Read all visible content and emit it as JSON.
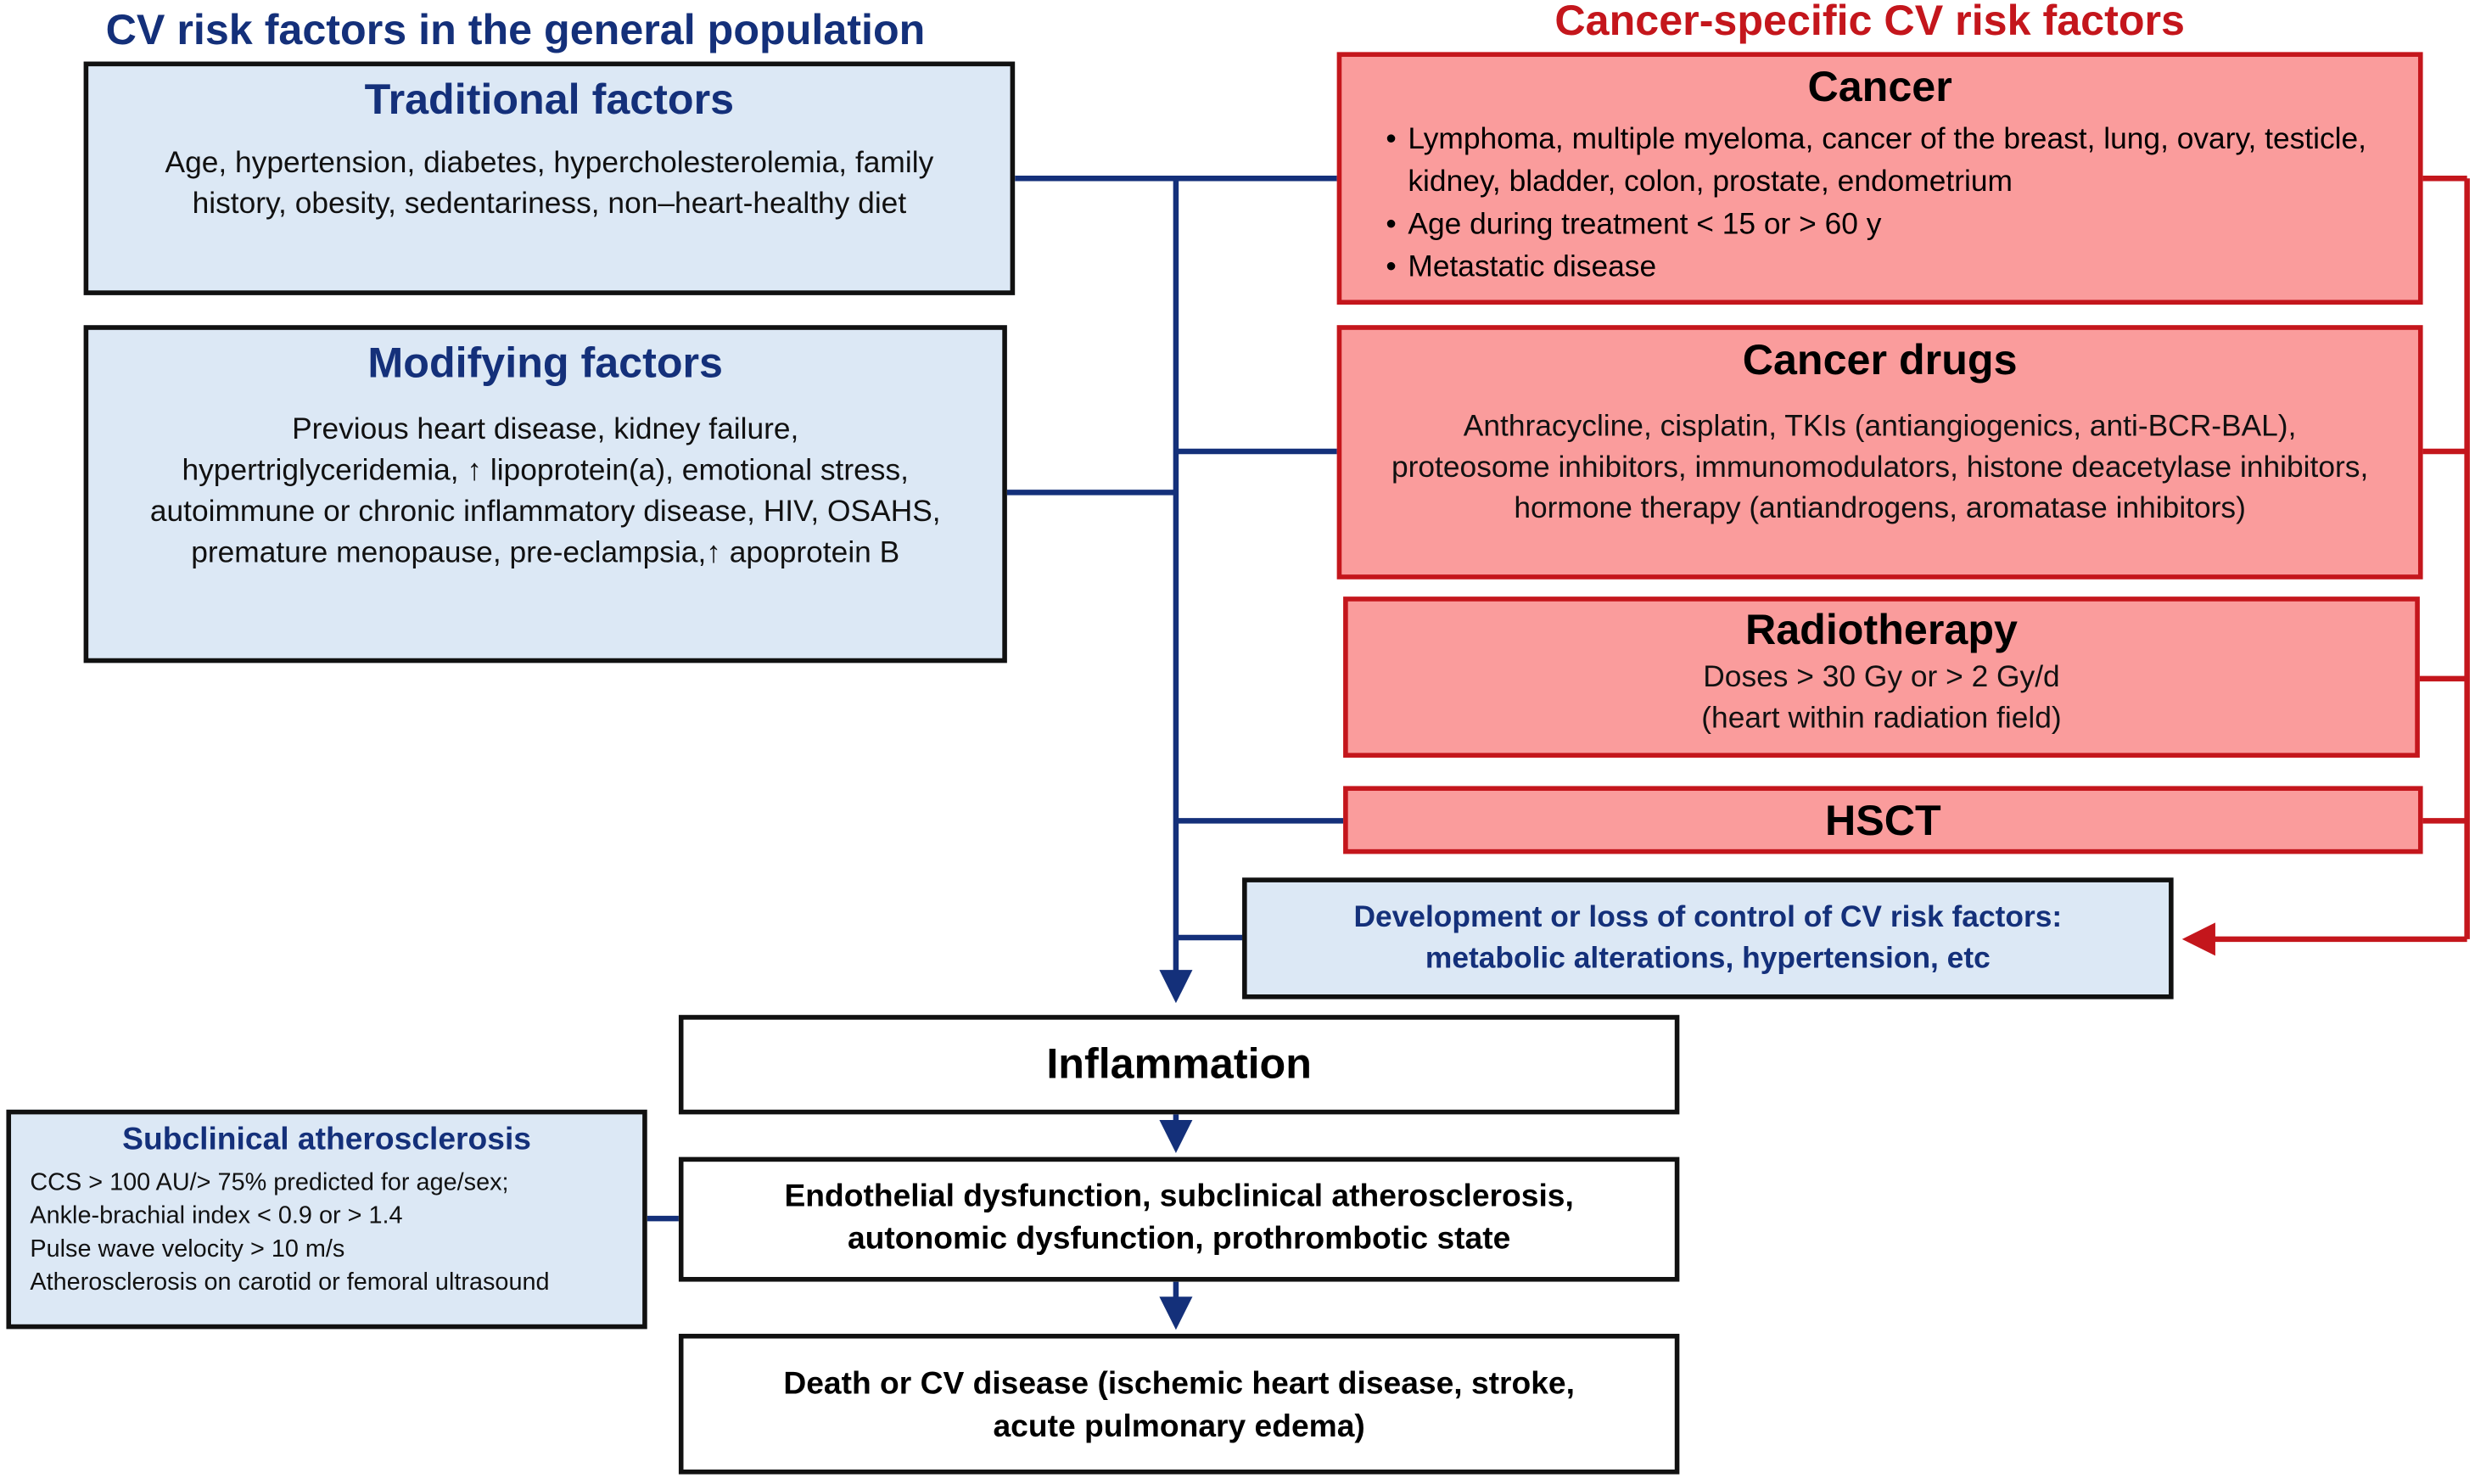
{
  "left_heading": "CV risk factors in the general population",
  "right_heading": "Cancer-specific CV risk factors",
  "traditional": {
    "title": "Traditional factors",
    "text": "Age, hypertension, diabetes, hypercholesterolemia, family history, obesity, sedentariness, non–heart-healthy diet"
  },
  "modifying": {
    "title": "Modifying factors",
    "lines": [
      "Previous heart disease, kidney failure,",
      "hypertriglyceridemia, ↑ lipoprotein(a), emotional stress,",
      "autoimmune or chronic inflammatory disease, HIV, OSAHS,",
      "premature menopause, pre-eclampsia,↑ apoprotein B"
    ]
  },
  "cancer": {
    "title": "Cancer",
    "items": [
      "Lymphoma, multiple myeloma, cancer of the breast, lung, ovary, testicle, kidney, bladder, colon, prostate, endometrium",
      "Age during treatment < 15 or > 60 y",
      "Metastatic disease"
    ]
  },
  "cancer_drugs": {
    "title": "Cancer drugs",
    "text": "Anthracycline, cisplatin, TKIs (antiangiogenics, anti-BCR-BAL), proteosome inhibitors, immunomodulators, histone deacetylase inhibitors, hormone therapy (antiandrogens, aromatase inhibitors)"
  },
  "radiotherapy": {
    "title": "Radiotherapy",
    "lines": [
      "Doses > 30 Gy or > 2 Gy/d",
      "(heart within radiation field)"
    ]
  },
  "hsct": {
    "title": "HSCT"
  },
  "development": {
    "text": "Development or loss of control of CV risk factors: metabolic alterations, hypertension, etc"
  },
  "inflammation": {
    "title": "Inflammation"
  },
  "endothelial": {
    "text": "Endothelial dysfunction, subclinical atherosclerosis, autonomic dysfunction,  prothrombotic state"
  },
  "death": {
    "text": "Death or CV disease (ischemic heart disease, stroke, acute pulmonary edema)"
  },
  "subclinical": {
    "title": "Subclinical atherosclerosis",
    "lines": [
      "CCS > 100 AU/> 75% predicted for age/sex;",
      "Ankle-brachial index < 0.9 or > 1.4",
      "Pulse wave velocity > 10 m/s",
      "Atherosclerosis on carotid or femoral ultrasound"
    ]
  },
  "colors": {
    "navy": "#14307a",
    "red": "#c4161c",
    "blue_fill": "#dce8f5",
    "red_fill": "#fa9c9c"
  }
}
